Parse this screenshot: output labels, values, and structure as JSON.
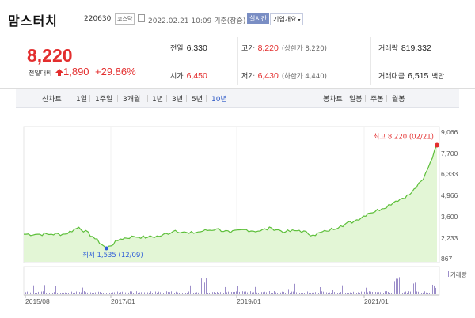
{
  "header": {
    "name": "맘스터치",
    "code": "220630",
    "market": "코스닥",
    "timestamp": "2022.02.21 10:09 기준(장중)",
    "realtime": "실시간",
    "company_info": "기업개요"
  },
  "price": {
    "current": "8,220",
    "change_label": "전일대비",
    "change": "1,890",
    "rate": "+29.86%"
  },
  "stats": {
    "prev": {
      "label": "전일",
      "value": "6,330"
    },
    "open": {
      "label": "시가",
      "value": "6,450"
    },
    "high": {
      "label": "고가",
      "value": "8,220",
      "sub": "(상한가 8,220)"
    },
    "low": {
      "label": "저가",
      "value": "6,430",
      "sub": "(하한가 4,440)"
    },
    "volume": {
      "label": "거래량",
      "value": "819,332"
    },
    "amount": {
      "label": "거래대금",
      "value": "6,515",
      "unit": "백만"
    }
  },
  "period_bar": {
    "line_chart": "선차트",
    "periods": [
      "1일",
      "1주일",
      "3개월",
      "1년",
      "3년",
      "5년",
      "10년"
    ],
    "active": "10년",
    "candle_chart": "봉차트",
    "candles": [
      "일봉",
      "주봉",
      "월봉"
    ]
  },
  "chart_data": {
    "type": "area",
    "y_ticks": [
      "9,066",
      "7,700",
      "6,333",
      "4,966",
      "3,600",
      "2,233",
      "867"
    ],
    "ylim": [
      867,
      9066
    ],
    "x_ticks": [
      "2015/08",
      "2017/01",
      "2019/01",
      "2021/01"
    ],
    "x": [
      "2015/08",
      "2015/11",
      "2016/02",
      "2016/05",
      "2016/08",
      "2016/10",
      "2016/12",
      "2017/02",
      "2017/04",
      "2017/06",
      "2017/08",
      "2017/10",
      "2017/12",
      "2018/03",
      "2018/06",
      "2018/09",
      "2018/12",
      "2019/03",
      "2019/06",
      "2019/09",
      "2019/12",
      "2020/03",
      "2020/06",
      "2020/09",
      "2020/12",
      "2021/03",
      "2021/06",
      "2021/09",
      "2021/12",
      "2022/01",
      "2022/02"
    ],
    "values": [
      2450,
      2450,
      2450,
      2460,
      2900,
      2300,
      1535,
      2150,
      2300,
      2250,
      2350,
      2700,
      2500,
      2650,
      2800,
      2550,
      2750,
      2650,
      2850,
      2600,
      2700,
      2400,
      2650,
      3000,
      3300,
      3800,
      4100,
      4600,
      5000,
      6000,
      8220
    ],
    "high": {
      "label": "최고 8,220 (02/21)",
      "value": 8220
    },
    "low": {
      "label": "최저 1,535 (12/09)",
      "value": 1535
    },
    "volume_legend": "거래량"
  },
  "colors": {
    "up": "#e32e2e",
    "line": "#5dbf3a",
    "area": "#e3f6d6",
    "volume": "#9c8ec9",
    "low_dot": "#2f5ed8"
  }
}
